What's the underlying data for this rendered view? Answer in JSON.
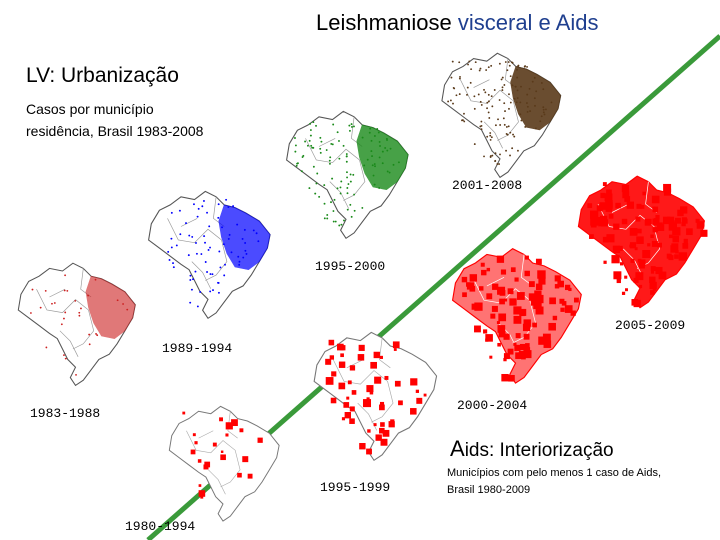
{
  "title": {
    "part1": "Leishmaniose ",
    "part2": "visceral e Aids",
    "accent_color": "#1f3f8f"
  },
  "lv": {
    "heading": "LV: Urbanização",
    "subtitle_line1": "Casos por município",
    "subtitle_line2": "residência, Brasil 1983-2008",
    "periods": [
      "1983-1988",
      "1989-1994",
      "1995-2000",
      "2001-2008"
    ],
    "colors": [
      "#cc2020",
      "#0000ff",
      "#1a8a1a",
      "#5a3a1a"
    ]
  },
  "aids": {
    "heading_initial": "A",
    "heading_rest": "ids: Interiorização",
    "subtitle_line1": "Municípios com pelo menos 1 caso de Aids,",
    "subtitle_line2": "Brasil 1980-2009",
    "periods": [
      "1980-1994",
      "1995-1999",
      "2000-2004",
      "2005-2009"
    ],
    "color": "#ff0000"
  },
  "divider_color": "#3a9a3a"
}
